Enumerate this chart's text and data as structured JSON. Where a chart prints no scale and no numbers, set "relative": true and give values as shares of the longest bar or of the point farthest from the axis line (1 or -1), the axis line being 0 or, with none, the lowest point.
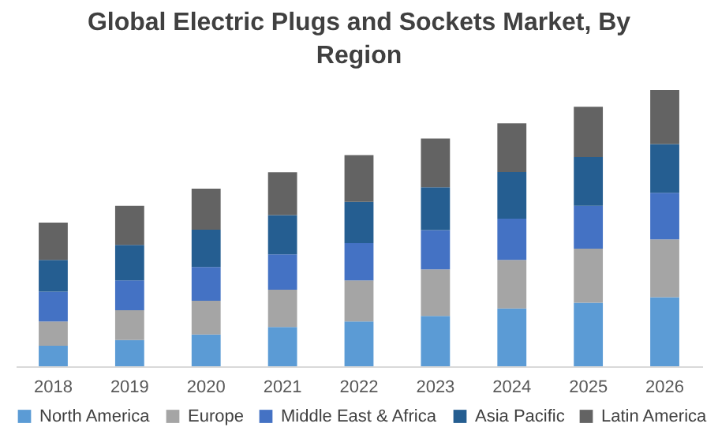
{
  "chart_data": {
    "type": "bar",
    "title": "Global Electric Plugs and Sockets Market, By Region",
    "stacked": true,
    "relative": true,
    "legend": "bottom",
    "grid": false,
    "categories": [
      "2018",
      "2019",
      "2020",
      "2021",
      "2022",
      "2023",
      "2024",
      "2025",
      "2026"
    ],
    "series": [
      {
        "name": "North America",
        "color": "#5b9bd5",
        "values": [
          0.074,
          0.095,
          0.115,
          0.142,
          0.162,
          0.182,
          0.209,
          0.23,
          0.25
        ]
      },
      {
        "name": "Europe",
        "color": "#a5a5a5",
        "values": [
          0.088,
          0.108,
          0.122,
          0.135,
          0.149,
          0.169,
          0.176,
          0.196,
          0.209
        ]
      },
      {
        "name": "Middle East & Africa",
        "color": "#4472c4",
        "values": [
          0.108,
          0.108,
          0.122,
          0.128,
          0.135,
          0.142,
          0.149,
          0.155,
          0.169
        ]
      },
      {
        "name": "Asia Pacific",
        "color": "#255e91",
        "values": [
          0.115,
          0.128,
          0.135,
          0.142,
          0.149,
          0.155,
          0.169,
          0.176,
          0.176
        ]
      },
      {
        "name": "Latin America",
        "color": "#636363",
        "values": [
          0.135,
          0.142,
          0.149,
          0.155,
          0.169,
          0.176,
          0.176,
          0.182,
          0.196
        ]
      }
    ]
  }
}
